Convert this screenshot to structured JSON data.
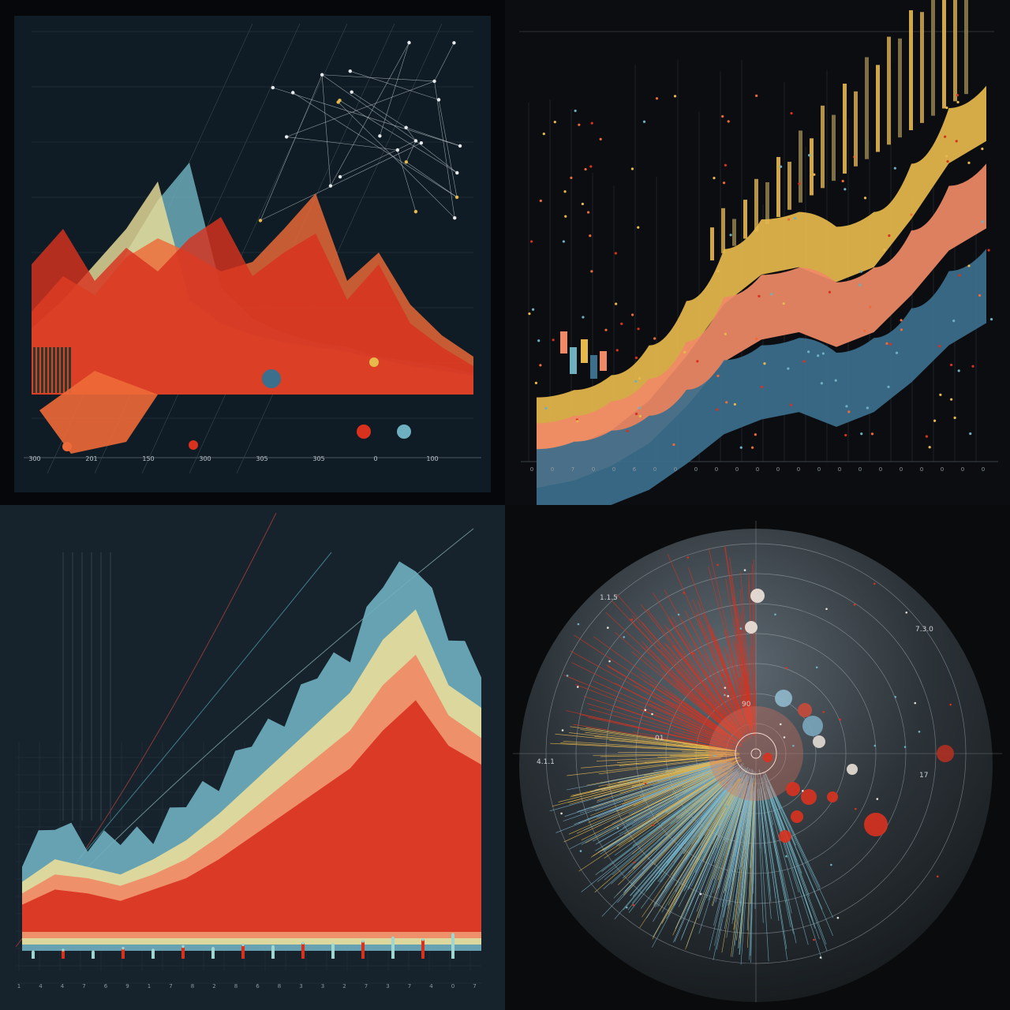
{
  "colors": {
    "red": "#d8321f",
    "orange": "#ee6a38",
    "salmon": "#f08a66",
    "cream": "#e9dd9a",
    "yellow": "#e7b84c",
    "teal": "#6fb0c0",
    "steel": "#3c6f8c",
    "mint": "#9fd6cf",
    "grid": "#2a3640"
  },
  "chart_data": [
    {
      "type": "area",
      "series": [
        {
          "name": "",
          "color": "red",
          "values": [
            55,
            70,
            48,
            62,
            52,
            66,
            75,
            50,
            60,
            68,
            40,
            55,
            30,
            20,
            12
          ]
        },
        {
          "name": "",
          "color": "orange",
          "values": [
            35,
            50,
            42,
            58,
            66,
            60,
            52,
            56,
            70,
            85,
            48,
            60,
            38,
            25,
            16
          ]
        },
        {
          "name": "",
          "color": "cream",
          "values": [
            28,
            40,
            55,
            70,
            90,
            40,
            30,
            25,
            22,
            20,
            18,
            15,
            12,
            10,
            8
          ]
        },
        {
          "name": "",
          "color": "teal",
          "values": [
            20,
            35,
            30,
            60,
            82,
            98,
            45,
            32,
            26,
            22,
            20,
            16,
            14,
            12,
            9
          ]
        }
      ],
      "x_tick_labels": [
        "300",
        "201",
        "150",
        "300",
        "305",
        "305",
        "0",
        "100"
      ],
      "ylim": [
        0,
        100
      ]
    },
    {
      "type": "area",
      "series": [
        {
          "name": "",
          "color": "yellow",
          "values": [
            12,
            14,
            18,
            26,
            38,
            52,
            60,
            62,
            58,
            62,
            75,
            90,
            96
          ]
        },
        {
          "name": "",
          "color": "salmon",
          "values": [
            8,
            10,
            14,
            20,
            30,
            42,
            48,
            50,
            46,
            50,
            60,
            72,
            78
          ]
        },
        {
          "name": "",
          "color": "steel",
          "values": [
            4,
            6,
            9,
            13,
            20,
            28,
            32,
            34,
            30,
            34,
            42,
            52,
            58
          ]
        }
      ],
      "bars": [
        22,
        30,
        18,
        26,
        35,
        28,
        40,
        32,
        48,
        38,
        55,
        44,
        60,
        50,
        68,
        58,
        72,
        66,
        80,
        74,
        88,
        82,
        95,
        90
      ],
      "x_tick_labels": [
        "0",
        "0",
        "7",
        "0",
        "0",
        "6",
        "0",
        "0",
        "0",
        "0",
        "0",
        "0",
        "0",
        "0",
        "0",
        "0",
        "0",
        "0",
        "0",
        "0",
        "0",
        "0",
        "0"
      ],
      "ylim": [
        0,
        100
      ]
    },
    {
      "type": "area",
      "series": [
        {
          "name": "",
          "color": "teal",
          "values": [
            18,
            24,
            22,
            20,
            24,
            30,
            38,
            46,
            55,
            64,
            72,
            88,
            96,
            74,
            68
          ]
        },
        {
          "name": "",
          "color": "cream",
          "values": [
            14,
            20,
            18,
            16,
            20,
            25,
            32,
            40,
            48,
            56,
            64,
            78,
            86,
            66,
            60
          ]
        },
        {
          "name": "",
          "color": "salmon",
          "values": [
            11,
            16,
            15,
            13,
            16,
            20,
            26,
            33,
            40,
            47,
            54,
            66,
            74,
            58,
            52
          ]
        },
        {
          "name": "",
          "color": "red",
          "values": [
            8,
            12,
            11,
            9,
            12,
            15,
            20,
            26,
            32,
            38,
            44,
            54,
            62,
            50,
            45
          ]
        }
      ],
      "bottom_series": [
        4,
        5,
        4,
        6,
        5,
        7,
        6,
        8,
        7,
        9,
        8,
        10,
        12,
        11,
        14
      ],
      "x_tick_labels": [
        "1",
        "4",
        "4",
        "7",
        "6",
        "9",
        "1",
        "7",
        "8",
        "2",
        "8",
        "6",
        "8",
        "3",
        "3",
        "2",
        "7",
        "3",
        "7",
        "4",
        "0",
        "7"
      ],
      "ylim": [
        0,
        100
      ]
    },
    {
      "type": "scatter",
      "polar": true,
      "rings": 7,
      "points_count_note": "",
      "ring_labels": [
        "01",
        "90",
        "17"
      ],
      "side_labels": [
        "4.1.1",
        "1.1.5",
        "7.3.0"
      ],
      "ylim": [
        0,
        100
      ]
    }
  ]
}
